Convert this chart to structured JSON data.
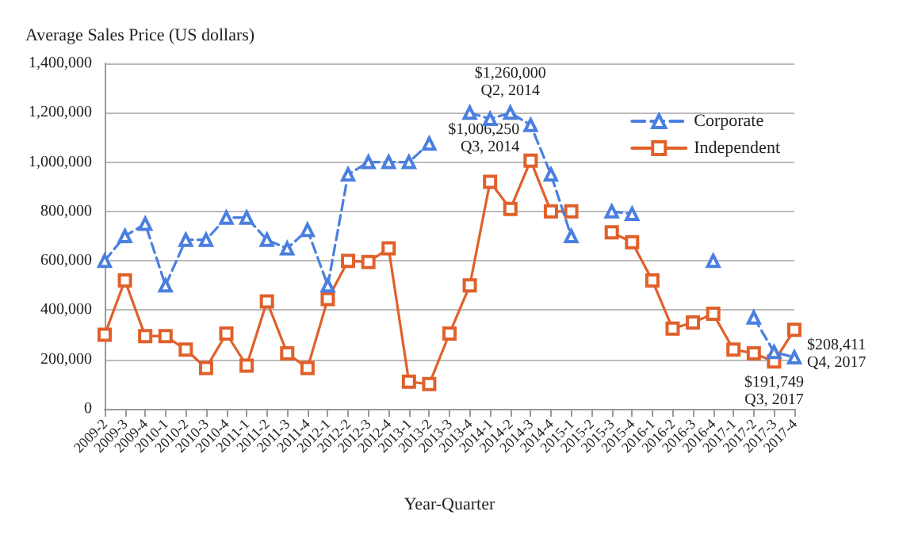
{
  "chart_data": {
    "type": "line",
    "ylabel": "Average Sales Price (US dollars)",
    "xlabel": "Year-Quarter",
    "categories": [
      "2009-2",
      "2009-3",
      "2009-4",
      "2010-1",
      "2010-2",
      "2010-3",
      "2010-4",
      "2011-1",
      "2011-2",
      "2011-3",
      "2011-4",
      "2012-1",
      "2012-2",
      "2012-3",
      "2012-4",
      "2013-1",
      "2013-2",
      "2013-3",
      "2013-4",
      "2014-1",
      "2014-2",
      "2014-3",
      "2014-4",
      "2015-1",
      "2015-2",
      "2015-3",
      "2015-4",
      "2016-1",
      "2016-2",
      "2016-3",
      "2016-4",
      "2017-1",
      "2017-2",
      "2017-3",
      "2017-4"
    ],
    "series": [
      {
        "name": "Corporate",
        "color": "#4a7fe0",
        "marker": "triangle",
        "line_style": "dashed",
        "values": [
          600000,
          700000,
          750000,
          500000,
          685000,
          685000,
          775000,
          775000,
          685000,
          650000,
          725000,
          500000,
          950000,
          1000000,
          1000000,
          1000000,
          1075000,
          null,
          1200000,
          1175000,
          1200000,
          1150000,
          950000,
          700000,
          null,
          800000,
          790000,
          null,
          null,
          null,
          600000,
          null,
          370000,
          230000,
          208411
        ]
      },
      {
        "name": "Independent",
        "color": "#e0602a",
        "marker": "square",
        "line_style": "solid",
        "values": [
          300000,
          520000,
          295000,
          295000,
          240000,
          165000,
          305000,
          175000,
          435000,
          225000,
          165000,
          445000,
          600000,
          595000,
          650000,
          110000,
          100000,
          305000,
          500000,
          920000,
          810000,
          1006250,
          800000,
          800000,
          null,
          715000,
          675000,
          520000,
          325000,
          350000,
          385000,
          240000,
          225000,
          191749,
          320000
        ]
      }
    ],
    "ylim": [
      0,
      1400000
    ],
    "yticks": [
      0,
      {
        "value": 200000,
        "label": "200,000"
      },
      {
        "value": 400000,
        "label": "400,000"
      },
      {
        "value": 600000,
        "label": "600,000"
      },
      {
        "value": 800000,
        "label": "800,000"
      },
      {
        "value": 1000000,
        "label": "1,000,000"
      },
      {
        "value": 1200000,
        "label": "1,200,000"
      },
      {
        "value": 1400000,
        "label": "1,400,000"
      }
    ],
    "grid": "y",
    "legend": "top right",
    "annotations": [
      {
        "text": "$1,260,000\nQ2, 2014",
        "x": "2014-2",
        "y": 1200000
      },
      {
        "text": "$1,006,250\nQ3, 2014",
        "x": "2014-3",
        "y": 1006250
      },
      {
        "text": "$191,749\nQ3, 2017",
        "x": "2017-3",
        "y": 191749
      },
      {
        "text": "$208,411\nQ4, 2017",
        "x": "2017-4",
        "y": 208411
      }
    ]
  }
}
